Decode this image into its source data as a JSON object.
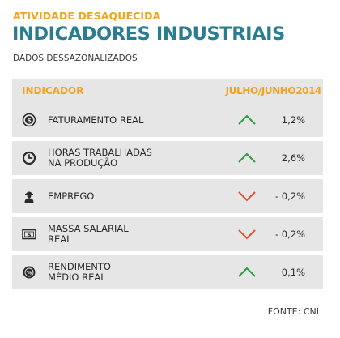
{
  "header": {
    "kicker": "ATIVIDADE DESAQUECIDA",
    "title": "INDICADORES INDUSTRIAIS",
    "subtitle": "DADOS DESSAZONALIZADOS"
  },
  "colors": {
    "accent": "#f2a21b",
    "title": "#2a7d8e",
    "row_bg": "#e6e6e6",
    "up": "#2e9a3e",
    "down": "#e0532a",
    "icon": "#2b2b2b"
  },
  "chart_data": {
    "type": "table",
    "columns": [
      "INDICADOR",
      "JULHO/JUNHO2014"
    ],
    "rows": [
      {
        "label": "FATURAMENTO REAL",
        "icon": "dollar-coin-icon",
        "direction": "up",
        "value_text": "1,2%",
        "value": 1.2
      },
      {
        "label": "HORAS TRABALHADAS\nNA PRODUÇÃO",
        "icon": "clock-icon",
        "direction": "up",
        "value_text": "2,6%",
        "value": 2.6
      },
      {
        "label": "EMPREGO",
        "icon": "worker-icon",
        "direction": "down",
        "value_text": "- 0,2%",
        "value": -0.2
      },
      {
        "label": "MASSA SALARIAL\nREAL",
        "icon": "banknote-icon",
        "direction": "down",
        "value_text": "- 0,2%",
        "value": -0.2
      },
      {
        "label": "RENDIMENTO\nMÉDIO REAL",
        "icon": "percent-coin-icon",
        "direction": "up",
        "value_text": "0,1%",
        "value": 0.1
      }
    ],
    "source": "FONTE: CNI"
  }
}
